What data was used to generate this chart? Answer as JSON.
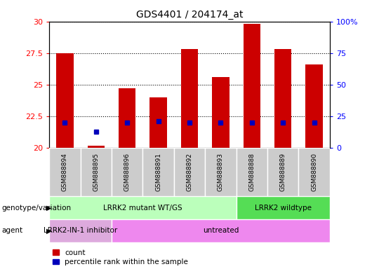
{
  "title": "GDS4401 / 204174_at",
  "samples": [
    "GSM888894",
    "GSM888895",
    "GSM888896",
    "GSM888891",
    "GSM888892",
    "GSM888893",
    "GSM888888",
    "GSM888889",
    "GSM888890"
  ],
  "red_values": [
    27.5,
    20.2,
    24.7,
    24.0,
    27.8,
    25.6,
    29.8,
    27.8,
    26.6
  ],
  "blue_values": [
    22.0,
    21.3,
    22.0,
    22.1,
    22.0,
    22.0,
    22.0,
    22.0,
    22.0
  ],
  "ylim_left": [
    20,
    30
  ],
  "ylim_right": [
    0,
    100
  ],
  "yticks_left": [
    20,
    22.5,
    25,
    27.5,
    30
  ],
  "yticks_right": [
    0,
    25,
    50,
    75,
    100
  ],
  "yticklabels_left": [
    "20",
    "22.5",
    "25",
    "27.5",
    "30"
  ],
  "yticklabels_right": [
    "0",
    "25",
    "50",
    "75",
    "100%"
  ],
  "genotype_groups": [
    {
      "label": "LRRK2 mutant WT/GS",
      "start": 0,
      "end": 5,
      "color": "#bbffbb"
    },
    {
      "label": "LRRK2 wildtype",
      "start": 6,
      "end": 8,
      "color": "#55dd55"
    }
  ],
  "agent_groups": [
    {
      "label": "LRRK2-IN-1 inhibitor",
      "start": 0,
      "end": 1,
      "color": "#ddaadd"
    },
    {
      "label": "untreated",
      "start": 2,
      "end": 8,
      "color": "#ee88ee"
    }
  ],
  "bar_color": "#cc0000",
  "blue_color": "#0000bb",
  "bar_bottom": 20,
  "legend_items": [
    {
      "label": "count",
      "color": "#cc0000"
    },
    {
      "label": "percentile rank within the sample",
      "color": "#0000bb"
    }
  ],
  "row_label_genotype": "genotype/variation",
  "row_label_agent": "agent",
  "tick_cell_color": "#cccccc",
  "tick_cell_border": "#ffffff"
}
